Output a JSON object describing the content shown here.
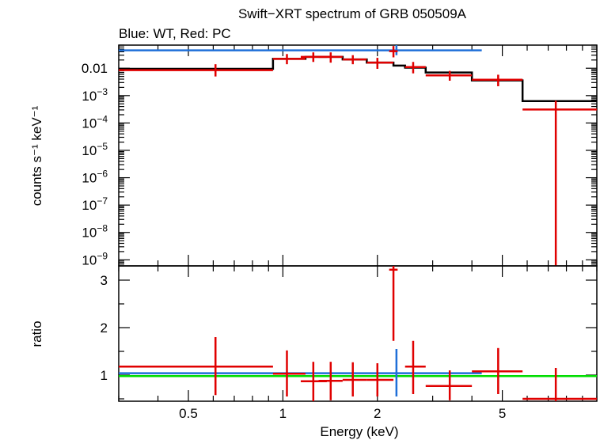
{
  "chart_data": {
    "title": "Swift−XRT spectrum of GRB 050509A",
    "subtitle": "Blue: WT, Red: PC",
    "xlabel": "Energy (keV)",
    "x_scale": "log",
    "xlim": [
      0.3,
      10
    ],
    "x_ticks": [
      {
        "value": 0.5,
        "label": "0.5"
      },
      {
        "value": 1,
        "label": "1"
      },
      {
        "value": 2,
        "label": "2"
      },
      {
        "value": 5,
        "label": "5"
      }
    ],
    "colors": {
      "wt": "#1f6fd8",
      "pc": "#e00000",
      "model": "#000000",
      "unity": "#00dd00",
      "frame": "#000000"
    },
    "panels": [
      {
        "type": "step-errorbar",
        "ylabel": "counts s⁻¹ keV⁻¹",
        "y_scale": "log",
        "ylim": [
          6e-10,
          0.07
        ],
        "y_ticks": [
          {
            "value": 0.01,
            "label": "0.01",
            "sup": ""
          },
          {
            "value": 0.001,
            "label": "10",
            "sup": "−3"
          },
          {
            "value": 0.0001,
            "label": "10",
            "sup": "−4"
          },
          {
            "value": 1e-05,
            "label": "10",
            "sup": "−5"
          },
          {
            "value": 1e-06,
            "label": "10",
            "sup": "−6"
          },
          {
            "value": 1e-07,
            "label": "10",
            "sup": "−7"
          },
          {
            "value": 1e-08,
            "label": "10",
            "sup": "−8"
          },
          {
            "value": 1e-09,
            "label": "10",
            "sup": "−9"
          }
        ],
        "model_steps": [
          {
            "x0": 0.3,
            "x1": 0.93,
            "y": 0.0095
          },
          {
            "x0": 0.93,
            "x1": 1.18,
            "y": 0.022
          },
          {
            "x0": 1.18,
            "x1": 1.55,
            "y": 0.026
          },
          {
            "x0": 1.55,
            "x1": 1.85,
            "y": 0.021
          },
          {
            "x0": 1.85,
            "x1": 2.25,
            "y": 0.016
          },
          {
            "x0": 2.25,
            "x1": 2.45,
            "y": 0.0125
          },
          {
            "x0": 2.45,
            "x1": 2.85,
            "y": 0.0105
          },
          {
            "x0": 2.85,
            "x1": 4.0,
            "y": 0.007
          },
          {
            "x0": 4.0,
            "x1": 5.8,
            "y": 0.0036
          },
          {
            "x0": 5.8,
            "x1": 10.0,
            "y": 0.00063
          }
        ],
        "series": [
          {
            "key": "wt",
            "points": [
              {
                "x": 2.3,
                "xlo": 0.3,
                "xhi": 4.3,
                "y": 0.045,
                "ylo": 0.045,
                "yhi": 0.045
              },
              {
                "x": 2.3,
                "xlo": 2.3,
                "xhi": 2.3,
                "y": 0.045,
                "ylo": 0.03,
                "yhi": 0.07
              }
            ]
          },
          {
            "key": "pc",
            "points": [
              {
                "x": 0.61,
                "xlo": 0.3,
                "xhi": 0.93,
                "y": 0.0085,
                "ylo": 0.005,
                "yhi": 0.014
              },
              {
                "x": 1.03,
                "xlo": 0.93,
                "xhi": 1.18,
                "y": 0.022,
                "ylo": 0.014,
                "yhi": 0.033
              },
              {
                "x": 1.25,
                "xlo": 1.14,
                "xhi": 1.38,
                "y": 0.026,
                "ylo": 0.017,
                "yhi": 0.038
              },
              {
                "x": 1.42,
                "xlo": 1.3,
                "xhi": 1.55,
                "y": 0.026,
                "ylo": 0.016,
                "yhi": 0.038
              },
              {
                "x": 1.67,
                "xlo": 1.55,
                "xhi": 1.85,
                "y": 0.021,
                "ylo": 0.014,
                "yhi": 0.03
              },
              {
                "x": 2.0,
                "xlo": 1.85,
                "xhi": 2.25,
                "y": 0.016,
                "ylo": 0.0095,
                "yhi": 0.024
              },
              {
                "x": 2.25,
                "xlo": 2.18,
                "xhi": 2.32,
                "y": 0.042,
                "ylo": 0.025,
                "yhi": 0.065
              },
              {
                "x": 2.6,
                "xlo": 2.45,
                "xhi": 2.85,
                "y": 0.011,
                "ylo": 0.0065,
                "yhi": 0.017
              },
              {
                "x": 3.4,
                "xlo": 2.85,
                "xhi": 4.0,
                "y": 0.0055,
                "ylo": 0.0035,
                "yhi": 0.008
              },
              {
                "x": 4.85,
                "xlo": 4.0,
                "xhi": 5.8,
                "y": 0.0038,
                "ylo": 0.0022,
                "yhi": 0.0058
              },
              {
                "x": 7.4,
                "xlo": 5.8,
                "xhi": 10.0,
                "y": 0.00031,
                "ylo": 6e-10,
                "yhi": 0.00065
              }
            ]
          }
        ]
      },
      {
        "type": "ratio",
        "ylabel": "ratio",
        "y_scale": "linear",
        "ylim": [
          0.45,
          3.3
        ],
        "y_ticks": [
          {
            "value": 1,
            "label": "1"
          },
          {
            "value": 2,
            "label": "2"
          },
          {
            "value": 3,
            "label": "3"
          }
        ],
        "unity": 0.98,
        "series": [
          {
            "key": "wt",
            "points": [
              {
                "x": 2.3,
                "xlo": 0.3,
                "xhi": 4.3,
                "y": 1.04,
                "ylo": 1.04,
                "yhi": 1.04
              },
              {
                "x": 2.3,
                "xlo": 2.3,
                "xhi": 2.3,
                "y": 1.04,
                "ylo": 0.55,
                "yhi": 1.55
              }
            ]
          },
          {
            "key": "pc",
            "points": [
              {
                "x": 0.61,
                "xlo": 0.3,
                "xhi": 0.93,
                "y": 1.18,
                "ylo": 0.58,
                "yhi": 1.8
              },
              {
                "x": 1.03,
                "xlo": 0.93,
                "xhi": 1.18,
                "y": 1.03,
                "ylo": 0.55,
                "yhi": 1.52
              },
              {
                "x": 1.25,
                "xlo": 1.14,
                "xhi": 1.38,
                "y": 0.87,
                "ylo": 0.45,
                "yhi": 1.28
              },
              {
                "x": 1.42,
                "xlo": 1.3,
                "xhi": 1.55,
                "y": 0.88,
                "ylo": 0.47,
                "yhi": 1.28
              },
              {
                "x": 1.67,
                "xlo": 1.55,
                "xhi": 1.85,
                "y": 0.9,
                "ylo": 0.55,
                "yhi": 1.27
              },
              {
                "x": 2.0,
                "xlo": 1.85,
                "xhi": 2.25,
                "y": 0.9,
                "ylo": 0.55,
                "yhi": 1.25
              },
              {
                "x": 2.25,
                "xlo": 2.18,
                "xhi": 2.32,
                "y": 3.22,
                "ylo": 1.72,
                "yhi": 3.3
              },
              {
                "x": 2.6,
                "xlo": 2.45,
                "xhi": 2.85,
                "y": 1.18,
                "ylo": 0.6,
                "yhi": 1.72
              },
              {
                "x": 3.4,
                "xlo": 2.85,
                "xhi": 4.0,
                "y": 0.77,
                "ylo": 0.47,
                "yhi": 1.1
              },
              {
                "x": 4.85,
                "xlo": 4.0,
                "xhi": 5.8,
                "y": 1.08,
                "ylo": 0.6,
                "yhi": 1.57
              },
              {
                "x": 7.4,
                "xlo": 5.8,
                "xhi": 10.0,
                "y": 0.5,
                "ylo": 0.45,
                "yhi": 1.15
              }
            ]
          }
        ]
      }
    ]
  }
}
